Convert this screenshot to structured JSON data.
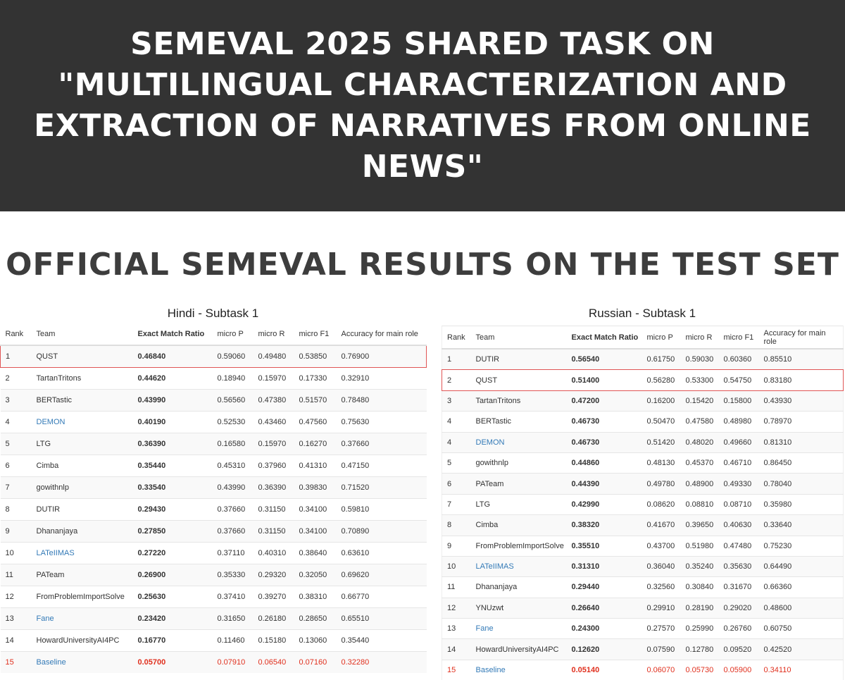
{
  "banner": {
    "title": "SEMEVAL 2025 SHARED TASK ON\n\"MULTILINGUAL CHARACTERIZATION AND\nEXTRACTION OF NARRATIVES FROM ONLINE\nNEWS\""
  },
  "section_title": "OFFICIAL SEMEVAL RESULTS ON THE TEST SET",
  "colors": {
    "banner_bg": "#333333",
    "highlight_border": "#e05555",
    "link": "#337ab7",
    "baseline": "#e0301e"
  },
  "tables": [
    {
      "caption": "Hindi - Subtask 1",
      "columns": [
        "Rank",
        "Team",
        "Exact Match Ratio",
        "micro P",
        "micro R",
        "micro F1",
        "Accuracy for main role"
      ],
      "highlight_team": "QUST",
      "rows": [
        {
          "rank": "1",
          "team": "QUST",
          "link": false,
          "emr": "0.46840",
          "p": "0.59060",
          "r": "0.49480",
          "f1": "0.53850",
          "acc": "0.76900"
        },
        {
          "rank": "2",
          "team": "TartanTritons",
          "link": false,
          "emr": "0.44620",
          "p": "0.18940",
          "r": "0.15970",
          "f1": "0.17330",
          "acc": "0.32910"
        },
        {
          "rank": "3",
          "team": "BERTastic",
          "link": false,
          "emr": "0.43990",
          "p": "0.56560",
          "r": "0.47380",
          "f1": "0.51570",
          "acc": "0.78480"
        },
        {
          "rank": "4",
          "team": "DEMON",
          "link": true,
          "emr": "0.40190",
          "p": "0.52530",
          "r": "0.43460",
          "f1": "0.47560",
          "acc": "0.75630"
        },
        {
          "rank": "5",
          "team": "LTG",
          "link": false,
          "emr": "0.36390",
          "p": "0.16580",
          "r": "0.15970",
          "f1": "0.16270",
          "acc": "0.37660"
        },
        {
          "rank": "6",
          "team": "Cimba",
          "link": false,
          "emr": "0.35440",
          "p": "0.45310",
          "r": "0.37960",
          "f1": "0.41310",
          "acc": "0.47150"
        },
        {
          "rank": "7",
          "team": "gowithnlp",
          "link": false,
          "emr": "0.33540",
          "p": "0.43990",
          "r": "0.36390",
          "f1": "0.39830",
          "acc": "0.71520"
        },
        {
          "rank": "8",
          "team": "DUTIR",
          "link": false,
          "emr": "0.29430",
          "p": "0.37660",
          "r": "0.31150",
          "f1": "0.34100",
          "acc": "0.59810"
        },
        {
          "rank": "9",
          "team": "Dhananjaya",
          "link": false,
          "emr": "0.27850",
          "p": "0.37660",
          "r": "0.31150",
          "f1": "0.34100",
          "acc": "0.70890"
        },
        {
          "rank": "10",
          "team": "LATeIIMAS",
          "link": true,
          "emr": "0.27220",
          "p": "0.37110",
          "r": "0.40310",
          "f1": "0.38640",
          "acc": "0.63610"
        },
        {
          "rank": "11",
          "team": "PATeam",
          "link": false,
          "emr": "0.26900",
          "p": "0.35330",
          "r": "0.29320",
          "f1": "0.32050",
          "acc": "0.69620"
        },
        {
          "rank": "12",
          "team": "FromProblemImportSolve",
          "link": false,
          "emr": "0.25630",
          "p": "0.37410",
          "r": "0.39270",
          "f1": "0.38310",
          "acc": "0.66770"
        },
        {
          "rank": "13",
          "team": "Fane",
          "link": true,
          "emr": "0.23420",
          "p": "0.31650",
          "r": "0.26180",
          "f1": "0.28650",
          "acc": "0.65510"
        },
        {
          "rank": "14",
          "team": "HowardUniversityAI4PC",
          "link": false,
          "emr": "0.16770",
          "p": "0.11460",
          "r": "0.15180",
          "f1": "0.13060",
          "acc": "0.35440"
        },
        {
          "rank": "15",
          "team": "Baseline",
          "link": true,
          "baseline": true,
          "emr": "0.05700",
          "p": "0.07910",
          "r": "0.06540",
          "f1": "0.07160",
          "acc": "0.32280"
        }
      ]
    },
    {
      "caption": "Russian - Subtask 1",
      "columns": [
        "Rank",
        "Team",
        "Exact Match Ratio",
        "micro P",
        "micro R",
        "micro F1",
        "Accuracy for main role"
      ],
      "highlight_team": "QUST",
      "rows": [
        {
          "rank": "1",
          "team": "DUTIR",
          "link": false,
          "emr": "0.56540",
          "p": "0.61750",
          "r": "0.59030",
          "f1": "0.60360",
          "acc": "0.85510"
        },
        {
          "rank": "2",
          "team": "QUST",
          "link": false,
          "emr": "0.51400",
          "p": "0.56280",
          "r": "0.53300",
          "f1": "0.54750",
          "acc": "0.83180"
        },
        {
          "rank": "3",
          "team": "TartanTritons",
          "link": false,
          "emr": "0.47200",
          "p": "0.16200",
          "r": "0.15420",
          "f1": "0.15800",
          "acc": "0.43930"
        },
        {
          "rank": "4",
          "team": "BERTastic",
          "link": false,
          "emr": "0.46730",
          "p": "0.50470",
          "r": "0.47580",
          "f1": "0.48980",
          "acc": "0.78970"
        },
        {
          "rank": "4",
          "team": "DEMON",
          "link": true,
          "emr": "0.46730",
          "p": "0.51420",
          "r": "0.48020",
          "f1": "0.49660",
          "acc": "0.81310"
        },
        {
          "rank": "5",
          "team": "gowithnlp",
          "link": false,
          "emr": "0.44860",
          "p": "0.48130",
          "r": "0.45370",
          "f1": "0.46710",
          "acc": "0.86450"
        },
        {
          "rank": "6",
          "team": "PATeam",
          "link": false,
          "emr": "0.44390",
          "p": "0.49780",
          "r": "0.48900",
          "f1": "0.49330",
          "acc": "0.78040"
        },
        {
          "rank": "7",
          "team": "LTG",
          "link": false,
          "emr": "0.42990",
          "p": "0.08620",
          "r": "0.08810",
          "f1": "0.08710",
          "acc": "0.35980"
        },
        {
          "rank": "8",
          "team": "Cimba",
          "link": false,
          "emr": "0.38320",
          "p": "0.41670",
          "r": "0.39650",
          "f1": "0.40630",
          "acc": "0.33640"
        },
        {
          "rank": "9",
          "team": "FromProblemImportSolve",
          "link": false,
          "emr": "0.35510",
          "p": "0.43700",
          "r": "0.51980",
          "f1": "0.47480",
          "acc": "0.75230"
        },
        {
          "rank": "10",
          "team": "LATeIIMAS",
          "link": true,
          "emr": "0.31310",
          "p": "0.36040",
          "r": "0.35240",
          "f1": "0.35630",
          "acc": "0.64490"
        },
        {
          "rank": "11",
          "team": "Dhananjaya",
          "link": false,
          "emr": "0.29440",
          "p": "0.32560",
          "r": "0.30840",
          "f1": "0.31670",
          "acc": "0.66360"
        },
        {
          "rank": "12",
          "team": "YNUzwt",
          "link": false,
          "emr": "0.26640",
          "p": "0.29910",
          "r": "0.28190",
          "f1": "0.29020",
          "acc": "0.48600"
        },
        {
          "rank": "13",
          "team": "Fane",
          "link": true,
          "emr": "0.24300",
          "p": "0.27570",
          "r": "0.25990",
          "f1": "0.26760",
          "acc": "0.60750"
        },
        {
          "rank": "14",
          "team": "HowardUniversityAI4PC",
          "link": false,
          "emr": "0.12620",
          "p": "0.07590",
          "r": "0.12780",
          "f1": "0.09520",
          "acc": "0.42520"
        },
        {
          "rank": "15",
          "team": "Baseline",
          "link": true,
          "baseline": true,
          "emr": "0.05140",
          "p": "0.06070",
          "r": "0.05730",
          "f1": "0.05900",
          "acc": "0.34110"
        }
      ]
    }
  ]
}
